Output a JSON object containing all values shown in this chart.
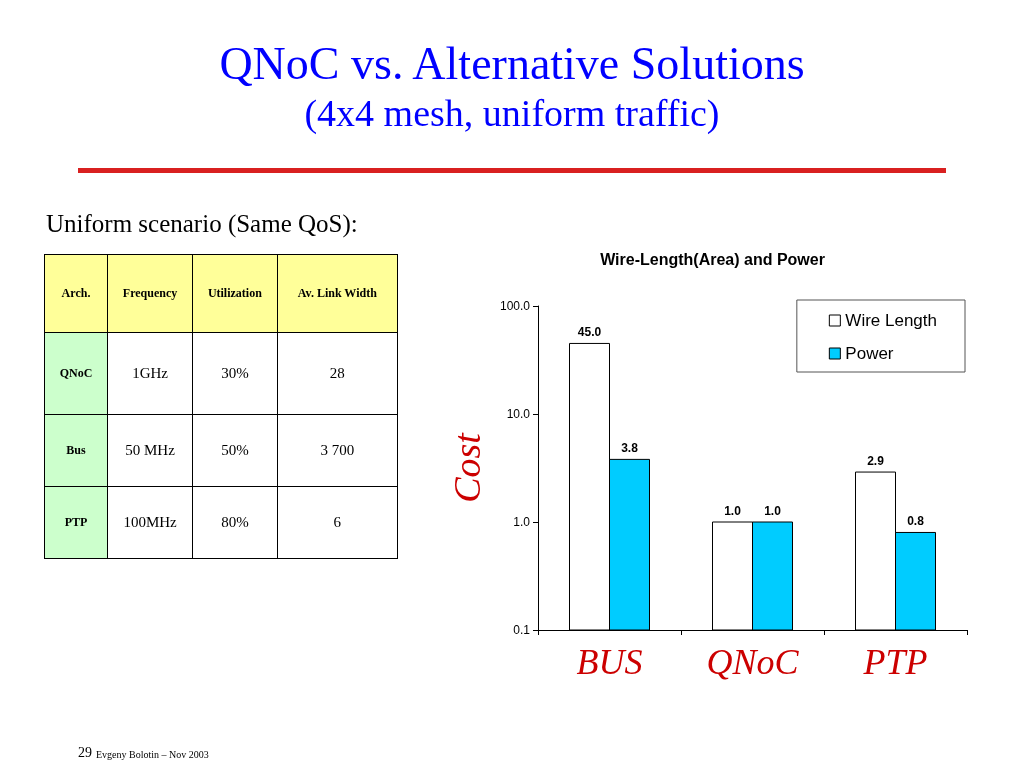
{
  "chart_data": [
    {
      "type": "other",
      "title": "QNoC vs. Alternative Solutions",
      "subtitle": "(4x4 mesh, uniform traffic)",
      "annotations": [
        "Uniform scenario (Same QoS):",
        "29",
        "Evgeny Bolotin – Nov 2003"
      ],
      "categories": [
        "Arch.",
        "Frequency",
        "Utilization",
        "Av. Link Width"
      ],
      "y_categories": [
        "QNoC",
        "Bus",
        "PTP"
      ],
      "cell_labels": [
        [
          "1GHz",
          "30%",
          "28"
        ],
        [
          "50 MHz",
          "50%",
          "3 700"
        ],
        [
          "100MHz",
          "80%",
          "6"
        ]
      ]
    },
    {
      "type": "bar",
      "title": "Wire-Length(Area) and Power",
      "ylabel": "Cost",
      "categories": [
        "BUS",
        "QNoC",
        "PTP"
      ],
      "series": [
        {
          "name": "Wire Length",
          "color": "#ffffff",
          "values": [
            45,
            1,
            2.9
          ],
          "value_labels": [
            "45.0",
            "1.0",
            "2.9"
          ]
        },
        {
          "name": "Power",
          "color": "#00ccff",
          "values": [
            3.8,
            1,
            0.8
          ],
          "value_labels": [
            "3.8",
            "1.0",
            "0.8"
          ]
        }
      ],
      "log": "y",
      "ylim": [
        0.1,
        100
      ],
      "yticks": [
        {
          "value": 0.1,
          "label": "0.1"
        },
        {
          "value": 1,
          "label": "1.0"
        },
        {
          "value": 10,
          "label": "10.0"
        },
        {
          "value": 100,
          "label": "100.0"
        }
      ],
      "grid": false,
      "legend": "top right"
    }
  ]
}
